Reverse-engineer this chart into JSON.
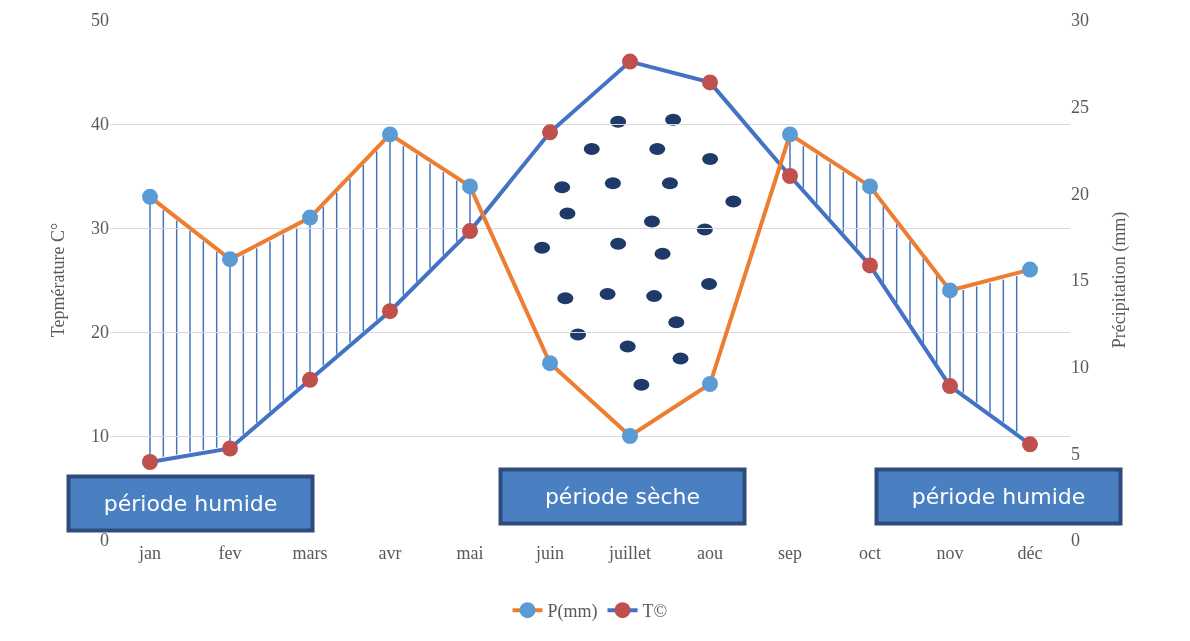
{
  "chart_data": {
    "type": "line",
    "categories": [
      "jan",
      "fev",
      "mars",
      "avr",
      "mai",
      "juin",
      "juillet",
      "aou",
      "sep",
      "oct",
      "nov",
      "déc"
    ],
    "series": [
      {
        "name": "P(mm)",
        "color": "#ed7d31",
        "axis": "y2",
        "values": [
          19.8,
          16.2,
          18.6,
          23.4,
          20.4,
          10.2,
          6,
          9,
          23.4,
          20.4,
          14.4,
          15.6
        ]
      },
      {
        "name": "T©",
        "color": "#4472c4",
        "values": [
          7.5,
          8.8,
          15.4,
          22,
          29.7,
          39.2,
          46,
          44,
          35,
          26.4,
          14.8,
          9.2
        ]
      }
    ],
    "ylabel": "Tepmérature C°",
    "y2label": "Précipitation (mm)",
    "ylim": [
      0,
      50
    ],
    "yticks": [
      0,
      10,
      20,
      30,
      40,
      50
    ],
    "y2lim": [
      0,
      30
    ],
    "y2ticks": [
      0,
      5,
      10,
      15,
      20,
      25,
      30
    ],
    "grid": "y",
    "legend": "bottom",
    "marker": "circle",
    "line_style": "solid",
    "annotations": [
      "période humide",
      "période sèche",
      "période humide"
    ]
  }
}
